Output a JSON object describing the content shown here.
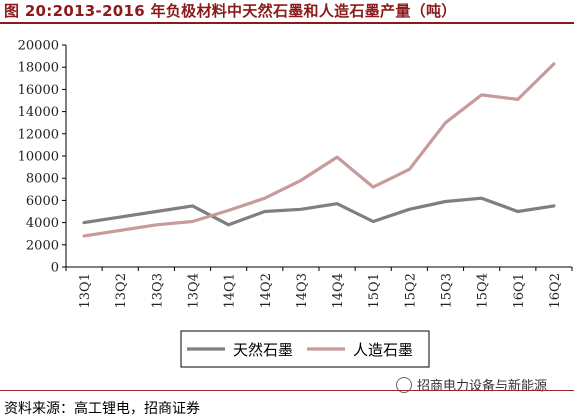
{
  "figure_label": "图 20:2013-2016 年负极材料中天然石墨和人造石墨产量（吨）",
  "source_text": "资料来源：高工锂电，招商证券",
  "watermark_text": "招商电力设备与新能源",
  "chart_data": {
    "type": "line",
    "title": "",
    "xlabel": "",
    "ylabel": "",
    "categories": [
      "13Q1",
      "13Q2",
      "13Q3",
      "13Q4",
      "14Q1",
      "14Q2",
      "14Q3",
      "14Q4",
      "15Q1",
      "15Q2",
      "15Q3",
      "15Q4",
      "16Q1",
      "16Q2"
    ],
    "ylim": [
      0,
      20000
    ],
    "yticks": [
      0,
      2000,
      4000,
      6000,
      8000,
      10000,
      12000,
      14000,
      16000,
      18000,
      20000
    ],
    "grid": false,
    "legend_position": "bottom",
    "series": [
      {
        "name": "天然石墨",
        "color": "#7f7f7f",
        "values": [
          4000,
          4500,
          5000,
          5500,
          3800,
          5000,
          5200,
          5700,
          4100,
          5200,
          5900,
          6200,
          5000,
          5500
        ]
      },
      {
        "name": "人造石墨",
        "color": "#c99a9b",
        "values": [
          2800,
          3300,
          3800,
          4100,
          5100,
          6200,
          7800,
          9900,
          7200,
          8800,
          13000,
          15500,
          15100,
          18300
        ]
      }
    ]
  }
}
